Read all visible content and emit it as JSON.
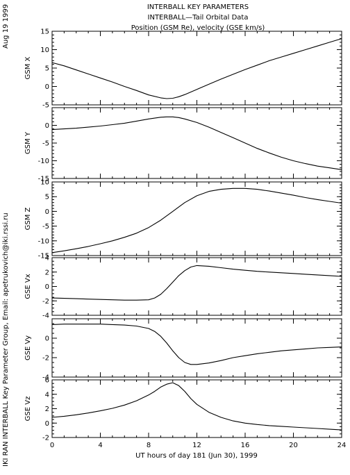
{
  "header": {
    "title_1": "INTERBALL KEY PARAMETERS",
    "title_2": "INTERBALL—Tail Orbital Data",
    "title_3": "Position (GSM Re), velocity (GSE km/s)"
  },
  "side": {
    "date": "Aug 19 1999",
    "credit": "IKI RAN INTERBALL Key Parameter Group, Email: apetrukovich@iki.rssi.ru"
  },
  "chart_data": {
    "type": "line",
    "xlabel": "UT hours of day 181 (Jun 30), 1999",
    "xlim": [
      0,
      24
    ],
    "x_ticks": [
      "0",
      "4",
      "8",
      "12",
      "16",
      "20",
      "24"
    ],
    "grid": false,
    "panels": [
      {
        "name": "GSM X",
        "ylim": [
          -5,
          15
        ],
        "y_ticks": [
          "-5",
          "0",
          "5",
          "10",
          "15"
        ],
        "x": [
          0,
          1,
          2,
          3,
          4,
          5,
          6,
          7,
          8,
          9,
          9.5,
          10,
          10.5,
          11,
          12,
          13,
          14,
          15,
          16,
          17,
          18,
          19,
          20,
          21,
          22,
          23,
          24
        ],
        "values": [
          6.5,
          5.6,
          4.5,
          3.4,
          2.3,
          1.2,
          0.0,
          -1.1,
          -2.3,
          -3.1,
          -3.3,
          -3.2,
          -2.8,
          -2.2,
          -0.8,
          0.6,
          2.0,
          3.3,
          4.6,
          5.8,
          7.0,
          8.0,
          9.0,
          10.0,
          11.0,
          12.0,
          13.0
        ]
      },
      {
        "name": "GSM Y",
        "ylim": [
          -15,
          5
        ],
        "y_ticks": [
          "-15",
          "-10",
          "-5",
          "0"
        ],
        "x": [
          0,
          1,
          2,
          3,
          4,
          5,
          6,
          7,
          8,
          9,
          9.5,
          10,
          10.5,
          11,
          12,
          13,
          14,
          15,
          16,
          17,
          18,
          19,
          20,
          21,
          22,
          23,
          24
        ],
        "values": [
          -1.2,
          -1.0,
          -0.8,
          -0.5,
          -0.2,
          0.2,
          0.6,
          1.2,
          1.8,
          2.3,
          2.4,
          2.4,
          2.2,
          1.8,
          0.8,
          -0.5,
          -2.0,
          -3.5,
          -5.0,
          -6.5,
          -7.8,
          -9.0,
          -10.0,
          -10.8,
          -11.5,
          -12.0,
          -12.5
        ]
      },
      {
        "name": "GSM Z",
        "ylim": [
          -15,
          10
        ],
        "y_ticks": [
          "-15",
          "-10",
          "-5",
          "0",
          "5",
          "10"
        ],
        "x": [
          0,
          1,
          2,
          3,
          4,
          5,
          6,
          7,
          8,
          9,
          10,
          11,
          12,
          13,
          14,
          15,
          16,
          17,
          18,
          19,
          20,
          21,
          22,
          23,
          24
        ],
        "values": [
          -14.0,
          -13.4,
          -12.7,
          -11.9,
          -11.0,
          -10.0,
          -8.8,
          -7.4,
          -5.5,
          -3.0,
          0.0,
          3.0,
          5.3,
          6.8,
          7.5,
          7.8,
          7.8,
          7.5,
          6.9,
          6.2,
          5.5,
          4.7,
          4.0,
          3.4,
          2.8
        ]
      },
      {
        "name": "GSE Vx",
        "ylim": [
          -4,
          4
        ],
        "y_ticks": [
          "-4",
          "-2",
          "0",
          "2",
          "4"
        ],
        "x": [
          0,
          1,
          2,
          3,
          4,
          5,
          6,
          7,
          8,
          8.5,
          9,
          9.5,
          10,
          10.5,
          11,
          11.5,
          12,
          13,
          14,
          15,
          16,
          17,
          18,
          19,
          20,
          21,
          22,
          23,
          24
        ],
        "values": [
          -1.6,
          -1.65,
          -1.7,
          -1.75,
          -1.8,
          -1.85,
          -1.9,
          -1.9,
          -1.85,
          -1.6,
          -1.1,
          -0.3,
          0.6,
          1.5,
          2.2,
          2.7,
          2.9,
          2.8,
          2.6,
          2.4,
          2.25,
          2.1,
          2.0,
          1.9,
          1.8,
          1.7,
          1.6,
          1.5,
          1.4
        ]
      },
      {
        "name": "GSE Vy",
        "ylim": [
          -4,
          2
        ],
        "y_ticks": [
          "-4",
          "-2",
          "0"
        ],
        "x": [
          0,
          1,
          2,
          3,
          4,
          5,
          6,
          7,
          8,
          8.5,
          9,
          9.5,
          10,
          10.5,
          11,
          11.5,
          12,
          13,
          14,
          15,
          16,
          17,
          18,
          19,
          20,
          21,
          22,
          23,
          24
        ],
        "values": [
          1.4,
          1.45,
          1.45,
          1.45,
          1.45,
          1.4,
          1.35,
          1.25,
          1.0,
          0.7,
          0.2,
          -0.5,
          -1.3,
          -2.0,
          -2.5,
          -2.7,
          -2.7,
          -2.55,
          -2.3,
          -2.0,
          -1.8,
          -1.6,
          -1.45,
          -1.3,
          -1.2,
          -1.1,
          -1.0,
          -0.95,
          -0.9
        ]
      },
      {
        "name": "GSE Vz",
        "ylim": [
          -2,
          6
        ],
        "y_ticks": [
          "-2",
          "0",
          "2",
          "4",
          "6"
        ],
        "x": [
          0,
          1,
          2,
          3,
          4,
          5,
          6,
          7,
          8,
          8.5,
          9,
          9.5,
          10,
          10.5,
          11,
          11.5,
          12,
          13,
          14,
          15,
          16,
          17,
          18,
          19,
          20,
          21,
          22,
          23,
          24
        ],
        "values": [
          0.8,
          0.95,
          1.15,
          1.4,
          1.7,
          2.05,
          2.5,
          3.1,
          3.9,
          4.4,
          5.0,
          5.4,
          5.6,
          5.2,
          4.4,
          3.4,
          2.6,
          1.5,
          0.8,
          0.3,
          0.0,
          -0.2,
          -0.35,
          -0.45,
          -0.55,
          -0.65,
          -0.75,
          -0.85,
          -0.95
        ]
      }
    ]
  }
}
